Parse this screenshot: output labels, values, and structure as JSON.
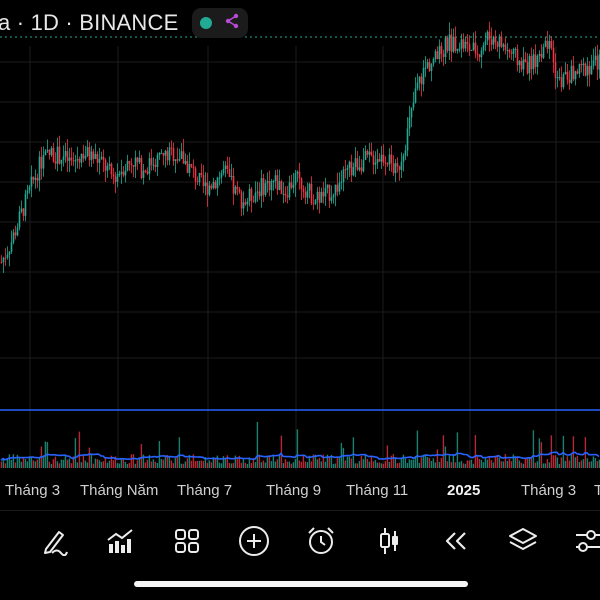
{
  "header": {
    "symbol_text": "a · 1D · BINANCE",
    "status_icon": "green-dot-icon",
    "indicator_icon": "share-nodes-icon",
    "accent_color": "#b84bd6"
  },
  "chart": {
    "up_color": "#22ab94",
    "down_color": "#f23645",
    "volume_line_color": "#2962ff"
  },
  "x_axis": {
    "labels": [
      "Tháng 3",
      "Tháng Năm",
      "Tháng 7",
      "Tháng 9",
      "Tháng 11",
      "2025",
      "Tháng 3",
      "T"
    ]
  },
  "toolbar": {
    "items": [
      {
        "name": "draw-tool-button",
        "icon": "pen-icon"
      },
      {
        "name": "indicators-button",
        "icon": "chart-bars-icon"
      },
      {
        "name": "templates-button",
        "icon": "grid-icon"
      },
      {
        "name": "add-button",
        "icon": "plus-circle-icon"
      },
      {
        "name": "alert-button",
        "icon": "alarm-clock-icon"
      },
      {
        "name": "chart-type-button",
        "icon": "candlestick-icon"
      },
      {
        "name": "replay-button",
        "icon": "rewind-icon"
      },
      {
        "name": "layers-button",
        "icon": "layers-icon"
      },
      {
        "name": "settings-button",
        "icon": "sliders-icon"
      }
    ]
  },
  "chart_data": {
    "type": "line",
    "title": "",
    "series": [
      {
        "values": [
          3.0,
          3.6,
          4.4,
          5.2,
          5.9,
          6.1,
          6.0,
          5.8,
          6.1,
          6.0,
          5.8,
          5.4,
          5.7,
          5.9,
          5.6,
          5.9,
          6.0,
          6.1,
          5.9,
          5.5,
          5.1,
          5.3,
          5.6,
          5.0,
          4.7,
          5.0,
          5.2,
          5.3,
          5.0,
          5.4,
          5.1,
          4.8,
          4.9,
          5.1,
          5.5,
          5.8,
          5.9,
          6.0,
          6.0,
          5.5,
          6.6,
          8.0,
          8.6,
          8.8,
          9.2,
          9.3,
          9.1,
          9.0,
          9.4,
          9.3,
          9.0,
          8.7,
          8.6,
          8.9,
          9.1,
          8.1,
          8.3,
          8.4,
          8.6,
          8.7
        ]
      }
    ]
  }
}
